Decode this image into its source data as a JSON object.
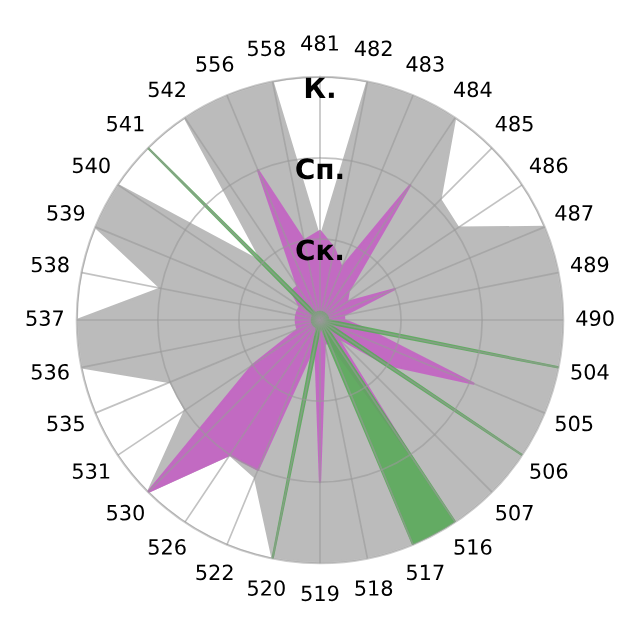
{
  "chart_data": {
    "type": "radar",
    "categories": [
      "481",
      "482",
      "483",
      "484",
      "485",
      "486",
      "487",
      "489",
      "490",
      "504",
      "505",
      "506",
      "507",
      "516",
      "517",
      "518",
      "519",
      "520",
      "522",
      "526",
      "530",
      "531",
      "535",
      "536",
      "537",
      "538",
      "539",
      "540",
      "541",
      "542",
      "556",
      "558"
    ],
    "series": [
      {
        "color": "#b4b4b4",
        "values": [
          1.0,
          3,
          3,
          3,
          2.1,
          2.05,
          3,
          3,
          3,
          3,
          3,
          3,
          3,
          3,
          3,
          3,
          3,
          3,
          2.1,
          2.0,
          3,
          2.0,
          2.0,
          3,
          3,
          2.0,
          3,
          3,
          1.0,
          3,
          3,
          3
        ]
      },
      {
        "color": "#c462c4",
        "values": [
          1.1,
          0.9,
          0.7,
          2.0,
          0.5,
          0.4,
          1.0,
          0.3,
          0.3,
          0.6,
          2.05,
          1.0,
          0.3,
          2.0,
          0.3,
          0.3,
          2.0,
          0.3,
          2.0,
          2.0,
          3.0,
          1.0,
          0.3,
          0.3,
          0.3,
          0.3,
          0.3,
          0.3,
          0.5,
          0.5,
          2.0,
          1.0
        ]
      },
      {
        "color": "#5aaa5a",
        "values": [
          0.1,
          0.1,
          0.1,
          0.1,
          0.1,
          0.1,
          0.1,
          0.1,
          0.1,
          3,
          0.1,
          3,
          0.1,
          3,
          3,
          0.1,
          0.1,
          3,
          0.1,
          0.1,
          0.1,
          0.1,
          0.1,
          0.1,
          0.1,
          0.1,
          0.1,
          0.1,
          3,
          0.1,
          0.1,
          0.1
        ]
      }
    ],
    "ylim": [
      0,
      3
    ],
    "yticks": [
      {
        "value": 1,
        "label": "Ск."
      },
      {
        "value": 2,
        "label": "Сп."
      },
      {
        "value": 3,
        "label": "К."
      }
    ],
    "grid": true,
    "legend": false,
    "marker": "none"
  }
}
